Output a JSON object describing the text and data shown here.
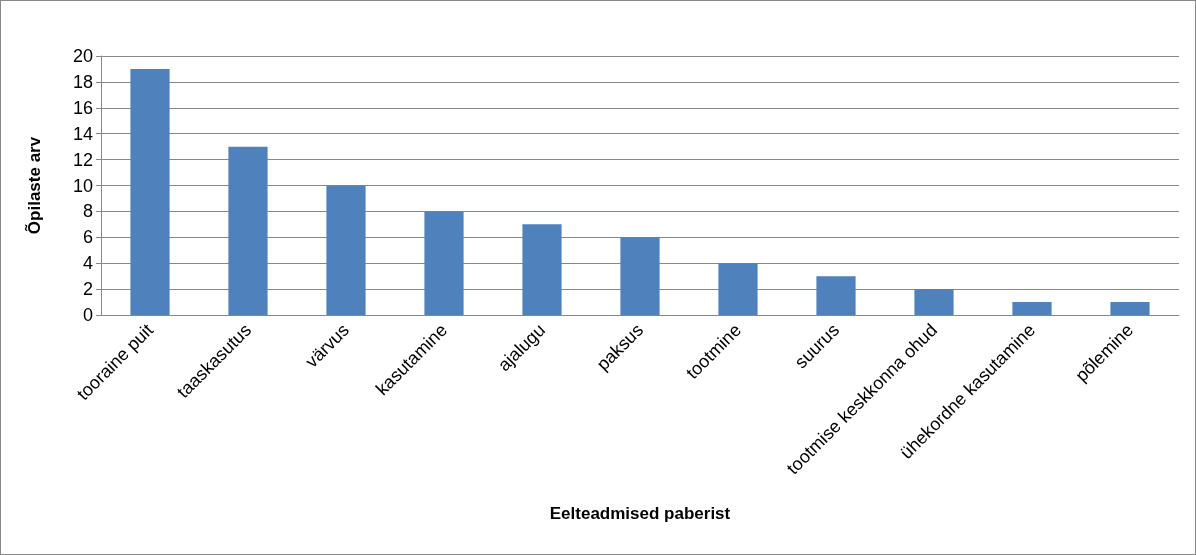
{
  "chart_data": {
    "type": "bar",
    "xlabel": "Eelteadmised paberist",
    "ylabel": "Õpilaste arv",
    "categories": [
      "tooraine puit",
      "taaskasutus",
      "värvus",
      "kasutamine",
      "ajalugu",
      "paksus",
      "tootmine",
      "suurus",
      "tootmise keskkonna ohud",
      "ühekordne kasutamine",
      "põlemine"
    ],
    "values": [
      19,
      13,
      10,
      8,
      7,
      6,
      4,
      3,
      2,
      1,
      1
    ],
    "color": "#4f81bd",
    "ylim": [
      0,
      20
    ],
    "yticks": [
      0,
      2,
      4,
      6,
      8,
      10,
      12,
      14,
      16,
      18,
      20
    ],
    "grid": "y"
  }
}
